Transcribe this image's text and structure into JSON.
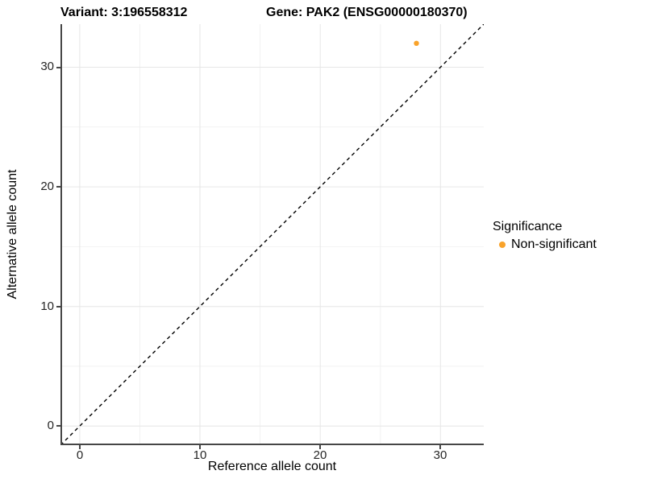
{
  "figure": {
    "title_variant": "Variant: 3:196558312",
    "title_gene": "Gene: PAK2 (ENSG00000180370)"
  },
  "chart_data": {
    "type": "scatter",
    "title": "Variant: 3:196558312   Gene: PAK2 (ENSG00000180370)",
    "xlabel": "Reference allele count",
    "ylabel": "Alternative allele count",
    "xlim": [
      -1.6,
      33.6
    ],
    "ylim": [
      -1.6,
      33.6
    ],
    "x_ticks": [
      0,
      10,
      20,
      30
    ],
    "y_ticks": [
      0,
      10,
      20,
      30
    ],
    "grid": "major and minor gridlines, light gray on white background",
    "diagonal_line": {
      "style": "dashed",
      "color": "#000000",
      "equation": "y = x"
    },
    "series": [
      {
        "name": "Non-significant",
        "color": "#F9A32B",
        "points": [
          {
            "x": 28,
            "y": 32
          }
        ]
      }
    ],
    "legend": {
      "title": "Significance",
      "position": "right",
      "entries": [
        {
          "label": "Non-significant",
          "color": "#F9A32B",
          "marker": "circle"
        }
      ]
    },
    "colors": {
      "axis_line": "#464646",
      "major_grid": "#e6e6e6",
      "minor_grid": "#f2f2f2",
      "point_orange": "#F9A32B"
    }
  }
}
